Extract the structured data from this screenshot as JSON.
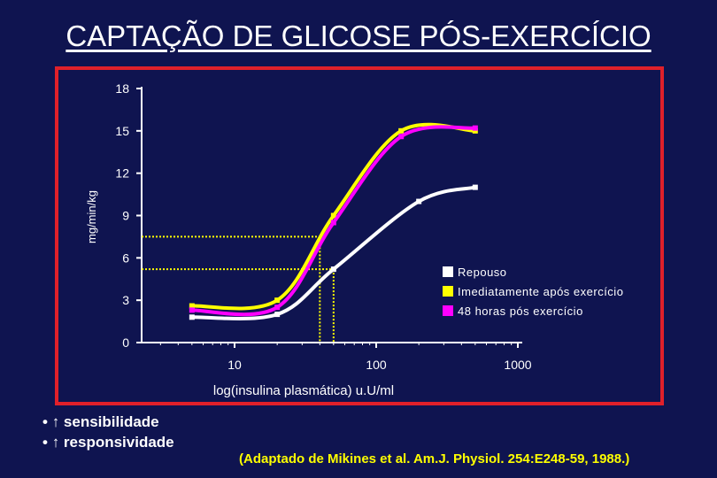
{
  "title": "CAPTAÇÃO DE GLICOSE PÓS-EXERCÍCIO",
  "chart_data": {
    "type": "line",
    "ylabel": "mg/min/kg",
    "xlabel": "log(insulina plasmática) u.U/ml",
    "ylim": [
      0,
      18
    ],
    "yticks": [
      "0",
      "3",
      "6",
      "9",
      "12",
      "15",
      "18"
    ],
    "xticks": [
      "10",
      "100",
      "1000"
    ],
    "series": [
      {
        "name": "Repouso",
        "color": "#ffffff",
        "points": [
          [
            5,
            1.8
          ],
          [
            20,
            2.0
          ],
          [
            50,
            5.2
          ],
          [
            200,
            10.0
          ],
          [
            500,
            11.0
          ]
        ]
      },
      {
        "name": "Imediatamente após exercício",
        "color": "#ffff00",
        "points": [
          [
            5,
            2.6
          ],
          [
            20,
            3.0
          ],
          [
            50,
            9.0
          ],
          [
            150,
            15.0
          ],
          [
            500,
            15.0
          ]
        ]
      },
      {
        "name": "48 horas pós exercício",
        "color": "#ff00ff",
        "points": [
          [
            5,
            2.3
          ],
          [
            20,
            2.5
          ],
          [
            50,
            8.5
          ],
          [
            150,
            14.6
          ],
          [
            500,
            15.2
          ]
        ]
      }
    ],
    "reference_lines": [
      {
        "y": 7.5,
        "x": 40
      },
      {
        "y": 5.2,
        "x": 50
      }
    ],
    "legend": "right"
  },
  "bullets": [
    {
      "arrow": "↑",
      "text": "sensibilidade"
    },
    {
      "arrow": "↑",
      "text": "responsividade"
    }
  ],
  "citation": "(Adaptado de Mikines et al. Am.J. Physiol. 254:E248-59, 1988.)"
}
